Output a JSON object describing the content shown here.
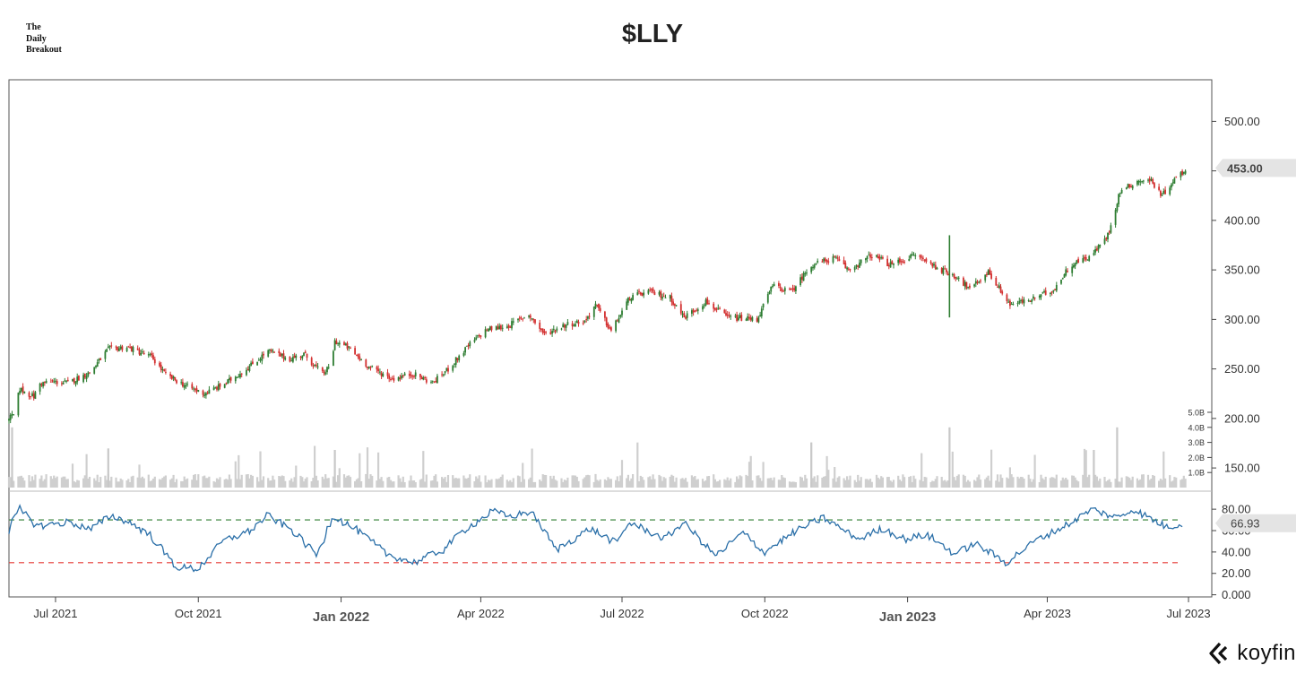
{
  "brand": {
    "line1": "The",
    "line2": "Daily",
    "line3": "Breakout"
  },
  "title": "$LLY",
  "logo": {
    "text": "koyfin"
  },
  "chart_data": {
    "type": "candlestick",
    "price_axis": {
      "ticks": [
        "500.00",
        "450.00",
        "400.00",
        "350.00",
        "300.00",
        "250.00",
        "200.00",
        "150.00"
      ],
      "tick_values": [
        500,
        450,
        400,
        350,
        300,
        250,
        200,
        150
      ],
      "range": [
        132,
        542
      ]
    },
    "last_price_label": "453.00",
    "last_price": 453.0,
    "volume_axis": {
      "ticks": [
        "5.0B",
        "4.0B",
        "3.0B",
        "2.0B",
        "1.0B"
      ],
      "tick_values": [
        5,
        4,
        3,
        2,
        1
      ],
      "unit": "B"
    },
    "rsi_axis": {
      "ticks": [
        "80.00",
        "60.00",
        "40.00",
        "20.00",
        "0.000"
      ],
      "tick_values": [
        80,
        60,
        40,
        20,
        0
      ],
      "range": [
        -2,
        91
      ]
    },
    "rsi_last_label": "66.93",
    "rsi_last": 66.93,
    "rsi_levels": {
      "overbought": 70,
      "oversold": 30
    },
    "x_axis": {
      "labels": [
        {
          "text": "Jul 2021",
          "date": "2021-07-01",
          "bold": false
        },
        {
          "text": "Oct 2021",
          "date": "2021-10-01",
          "bold": false
        },
        {
          "text": "Jan 2022",
          "date": "2022-01-01",
          "bold": true
        },
        {
          "text": "Apr 2022",
          "date": "2022-04-01",
          "bold": false
        },
        {
          "text": "Jul 2022",
          "date": "2022-07-01",
          "bold": false
        },
        {
          "text": "Oct 2022",
          "date": "2022-10-01",
          "bold": false
        },
        {
          "text": "Jan 2023",
          "date": "2023-01-01",
          "bold": true
        },
        {
          "text": "Apr 2023",
          "date": "2023-04-01",
          "bold": false
        },
        {
          "text": "Jul 2023",
          "date": "2023-07-01",
          "bold": false
        }
      ]
    },
    "price_path": [
      [
        "2021-06-01",
        200
      ],
      [
        "2021-06-04",
        203
      ],
      [
        "2021-06-08",
        230
      ],
      [
        "2021-06-12",
        226
      ],
      [
        "2021-06-17",
        222
      ],
      [
        "2021-06-21",
        235
      ],
      [
        "2021-06-28",
        237
      ],
      [
        "2021-07-09",
        236
      ],
      [
        "2021-07-23",
        246
      ],
      [
        "2021-08-04",
        270
      ],
      [
        "2021-08-16",
        272
      ],
      [
        "2021-09-01",
        262
      ],
      [
        "2021-09-10",
        244
      ],
      [
        "2021-09-24",
        232
      ],
      [
        "2021-10-05",
        225
      ],
      [
        "2021-10-18",
        235
      ],
      [
        "2021-11-01",
        250
      ],
      [
        "2021-11-15",
        268
      ],
      [
        "2021-11-29",
        260
      ],
      [
        "2021-12-08",
        265
      ],
      [
        "2021-12-20",
        245
      ],
      [
        "2021-12-25",
        252
      ],
      [
        "2021-12-28",
        278
      ],
      [
        "2022-01-05",
        272
      ],
      [
        "2022-01-19",
        252
      ],
      [
        "2022-02-03",
        240
      ],
      [
        "2022-02-16",
        245
      ],
      [
        "2022-03-01",
        236
      ],
      [
        "2022-03-11",
        250
      ],
      [
        "2022-03-25",
        275
      ],
      [
        "2022-04-05",
        290
      ],
      [
        "2022-04-18",
        293
      ],
      [
        "2022-05-02",
        305
      ],
      [
        "2022-05-12",
        285
      ],
      [
        "2022-05-26",
        295
      ],
      [
        "2022-06-07",
        298
      ],
      [
        "2022-06-14",
        315
      ],
      [
        "2022-06-24",
        288
      ],
      [
        "2022-07-06",
        322
      ],
      [
        "2022-07-18",
        328
      ],
      [
        "2022-08-01",
        322
      ],
      [
        "2022-08-10",
        302
      ],
      [
        "2022-08-24",
        318
      ],
      [
        "2022-09-07",
        302
      ],
      [
        "2022-09-26",
        300
      ],
      [
        "2022-10-06",
        334
      ],
      [
        "2022-10-18",
        328
      ],
      [
        "2022-10-31",
        355
      ],
      [
        "2022-11-15",
        362
      ],
      [
        "2022-11-24",
        350
      ],
      [
        "2022-12-09",
        365
      ],
      [
        "2022-12-21",
        355
      ],
      [
        "2023-01-06",
        365
      ],
      [
        "2023-01-23",
        350
      ],
      [
        "2023-02-03",
        342
      ],
      [
        "2023-02-10",
        330
      ],
      [
        "2023-02-22",
        348
      ],
      [
        "2023-03-08",
        315
      ],
      [
        "2023-03-22",
        320
      ],
      [
        "2023-04-05",
        330
      ],
      [
        "2023-04-16",
        355
      ],
      [
        "2023-04-30",
        365
      ],
      [
        "2023-05-10",
        385
      ],
      [
        "2023-05-18",
        430
      ],
      [
        "2023-05-30",
        440
      ],
      [
        "2023-06-07",
        440
      ],
      [
        "2023-06-14",
        425
      ],
      [
        "2023-06-21",
        440
      ],
      [
        "2023-06-29",
        451
      ]
    ],
    "earnings_spike": {
      "date": "2023-01-28",
      "low": 302,
      "high": 385
    },
    "rsi_path": [
      [
        "2021-06-01",
        60
      ],
      [
        "2021-06-08",
        80
      ],
      [
        "2021-06-20",
        64
      ],
      [
        "2021-07-10",
        68
      ],
      [
        "2021-07-24",
        61
      ],
      [
        "2021-08-06",
        74
      ],
      [
        "2021-08-18",
        68
      ],
      [
        "2021-09-01",
        55
      ],
      [
        "2021-09-17",
        26
      ],
      [
        "2021-10-01",
        24
      ],
      [
        "2021-10-17",
        50
      ],
      [
        "2021-11-04",
        60
      ],
      [
        "2021-11-15",
        74
      ],
      [
        "2021-12-01",
        60
      ],
      [
        "2021-12-17",
        37
      ],
      [
        "2021-12-27",
        74
      ],
      [
        "2022-01-12",
        60
      ],
      [
        "2022-01-31",
        38
      ],
      [
        "2022-02-17",
        30
      ],
      [
        "2022-03-08",
        42
      ],
      [
        "2022-03-21",
        60
      ],
      [
        "2022-04-09",
        78
      ],
      [
        "2022-04-20",
        73
      ],
      [
        "2022-05-04",
        78
      ],
      [
        "2022-05-20",
        42
      ],
      [
        "2022-06-11",
        62
      ],
      [
        "2022-06-28",
        48
      ],
      [
        "2022-07-06",
        68
      ],
      [
        "2022-07-29",
        52
      ],
      [
        "2022-08-10",
        68
      ],
      [
        "2022-08-31",
        36
      ],
      [
        "2022-09-17",
        58
      ],
      [
        "2022-10-01",
        40
      ],
      [
        "2022-10-22",
        60
      ],
      [
        "2022-11-08",
        72
      ],
      [
        "2022-12-01",
        52
      ],
      [
        "2022-12-16",
        62
      ],
      [
        "2022-12-31",
        52
      ],
      [
        "2023-01-14",
        56
      ],
      [
        "2023-02-01",
        38
      ],
      [
        "2023-02-14",
        48
      ],
      [
        "2023-03-06",
        30
      ],
      [
        "2023-03-24",
        50
      ],
      [
        "2023-04-15",
        66
      ],
      [
        "2023-04-30",
        80
      ],
      [
        "2023-05-16",
        72
      ],
      [
        "2023-05-27",
        80
      ],
      [
        "2023-06-06",
        72
      ],
      [
        "2023-06-18",
        63
      ],
      [
        "2023-06-28",
        67
      ]
    ],
    "colors": {
      "up": "#2e7d32",
      "down": "#d32f2f",
      "rsi_line": "#2a6fa8",
      "overbought": "#2e7d32",
      "oversold": "#e53935",
      "volume": "#cfcfcf",
      "axis": "#444444",
      "label_bg": "#e4e4e4"
    }
  }
}
